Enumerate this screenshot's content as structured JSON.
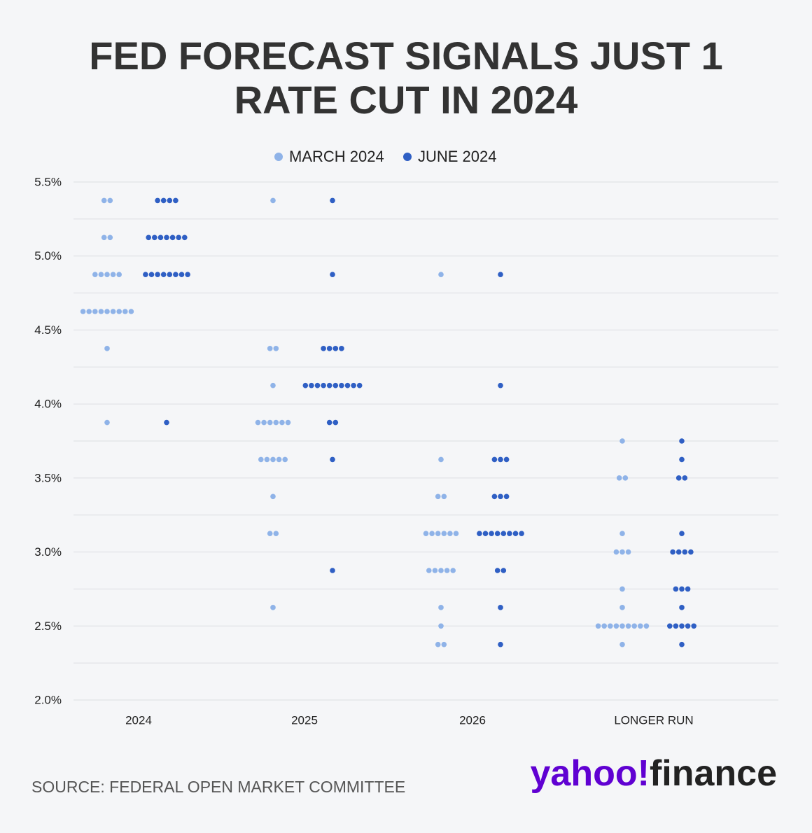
{
  "chart_data": {
    "type": "dot",
    "title": [
      "FED FORECAST SIGNALS JUST 1",
      "RATE CUT IN 2024"
    ],
    "categories": [
      "2024",
      "2025",
      "2026",
      "LONGER RUN"
    ],
    "series": [
      {
        "name": "MARCH 2024",
        "color": "#8fb3e8",
        "values": [
          [
            5.375,
            5.375,
            5.125,
            5.125,
            4.875,
            4.875,
            4.875,
            4.875,
            4.875,
            4.625,
            4.625,
            4.625,
            4.625,
            4.625,
            4.625,
            4.625,
            4.625,
            4.625,
            4.375,
            3.875
          ],
          [
            5.375,
            4.375,
            4.375,
            4.125,
            3.875,
            3.875,
            3.875,
            3.875,
            3.875,
            3.875,
            3.625,
            3.625,
            3.625,
            3.625,
            3.625,
            3.375,
            3.125,
            3.125,
            2.625
          ],
          [
            4.875,
            3.625,
            3.375,
            3.375,
            3.125,
            3.125,
            3.125,
            3.125,
            3.125,
            3.125,
            2.875,
            2.875,
            2.875,
            2.875,
            2.875,
            2.625,
            2.5,
            2.375,
            2.375
          ],
          [
            3.75,
            3.5,
            3.5,
            3.125,
            3.0,
            3.0,
            3.0,
            2.75,
            2.625,
            2.5,
            2.5,
            2.5,
            2.5,
            2.5,
            2.5,
            2.5,
            2.5,
            2.5,
            2.375
          ]
        ]
      },
      {
        "name": "JUNE 2024",
        "color": "#2f5fc4",
        "values": [
          [
            5.375,
            5.375,
            5.375,
            5.375,
            5.125,
            5.125,
            5.125,
            5.125,
            5.125,
            5.125,
            5.125,
            4.875,
            4.875,
            4.875,
            4.875,
            4.875,
            4.875,
            4.875,
            4.875,
            3.875
          ],
          [
            5.375,
            4.875,
            4.375,
            4.375,
            4.375,
            4.375,
            4.125,
            4.125,
            4.125,
            4.125,
            4.125,
            4.125,
            4.125,
            4.125,
            4.125,
            4.125,
            3.875,
            3.875,
            3.625,
            2.875
          ],
          [
            4.875,
            4.125,
            3.625,
            3.625,
            3.625,
            3.375,
            3.375,
            3.375,
            3.125,
            3.125,
            3.125,
            3.125,
            3.125,
            3.125,
            3.125,
            3.125,
            2.875,
            2.875,
            2.625,
            2.375
          ],
          [
            3.75,
            3.625,
            3.5,
            3.5,
            3.125,
            3.0,
            3.0,
            3.0,
            3.0,
            2.75,
            2.75,
            2.75,
            2.625,
            2.5,
            2.5,
            2.5,
            2.5,
            2.5,
            2.375
          ]
        ]
      }
    ],
    "ylim": [
      2.0,
      5.5
    ],
    "yticks": [
      {
        "value": 2.0,
        "label": "2.0%"
      },
      {
        "value": 2.5,
        "label": "2.5%"
      },
      {
        "value": 3.0,
        "label": "3.0%"
      },
      {
        "value": 3.5,
        "label": "3.5%"
      },
      {
        "value": 4.0,
        "label": "4.0%"
      },
      {
        "value": 4.5,
        "label": "4.5%"
      },
      {
        "value": 5.0,
        "label": "5.0%"
      },
      {
        "value": 5.5,
        "label": "5.5%"
      }
    ],
    "minor_grid": [
      2.25,
      2.75,
      3.25,
      3.75,
      4.25,
      4.75,
      5.25
    ],
    "grid": true,
    "legend": "top",
    "source": "SOURCE: FEDERAL OPEN MARKET COMMITTEE",
    "logo": {
      "brand": "yahoo!",
      "product": "finance"
    }
  }
}
